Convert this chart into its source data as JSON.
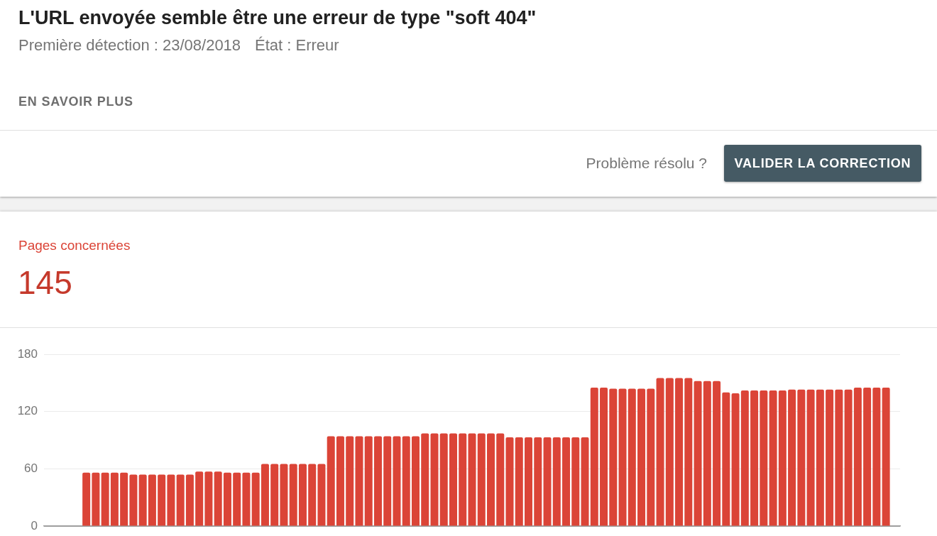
{
  "chart_data": {
    "type": "bar",
    "title": "L'URL envoyée semble être une erreur de type \"soft 404\"",
    "subtitle": "Première détection : 23/08/2018",
    "annotations": [
      "État : Erreur",
      "EN SAVOIR PLUS",
      "Problème résolu ?",
      "VALIDER LA CORRECTION",
      "145"
    ],
    "categories": [
      null,
      null,
      null,
      null,
      null,
      null,
      null,
      null,
      null,
      null,
      null,
      null,
      null,
      null,
      null,
      null,
      null,
      null,
      null,
      null,
      null,
      null,
      null,
      null,
      null,
      null,
      null,
      null,
      null,
      null,
      null,
      null,
      null,
      null,
      null,
      null,
      null,
      null,
      null,
      null,
      null,
      null,
      null,
      null,
      null,
      null,
      null,
      null,
      null,
      null,
      null,
      null,
      null,
      null,
      null,
      null,
      null,
      null,
      null,
      null,
      null,
      null,
      null,
      null,
      null,
      null,
      null,
      null,
      null,
      null,
      null,
      null,
      null,
      null,
      null,
      null,
      null,
      null,
      null,
      null,
      null,
      null,
      null,
      null,
      null,
      null,
      null,
      null,
      null,
      null,
      null
    ],
    "series": [
      {
        "name": "Pages concernées",
        "color": "#db4437",
        "values": [
          null,
          null,
          null,
          null,
          56,
          56,
          56,
          56,
          56,
          54,
          54,
          54,
          54,
          54,
          54,
          54,
          57,
          57,
          57,
          56,
          56,
          56,
          56,
          65,
          65,
          65,
          65,
          65,
          65,
          65,
          94,
          94,
          94,
          94,
          94,
          94,
          94,
          94,
          94,
          94,
          97,
          97,
          97,
          97,
          97,
          97,
          97,
          97,
          97,
          93,
          93,
          93,
          93,
          93,
          93,
          93,
          93,
          93,
          145,
          145,
          144,
          144,
          144,
          144,
          144,
          155,
          155,
          155,
          155,
          152,
          152,
          152,
          140,
          139,
          142,
          142,
          142,
          142,
          142,
          143,
          143,
          143,
          143,
          143,
          143,
          143,
          145,
          145,
          145,
          145,
          null
        ]
      }
    ],
    "ylim": [
      0,
      180
    ],
    "yticks": [
      0,
      60,
      120,
      180
    ],
    "grid": "y",
    "legend": "top left",
    "tick_labels": "y"
  }
}
